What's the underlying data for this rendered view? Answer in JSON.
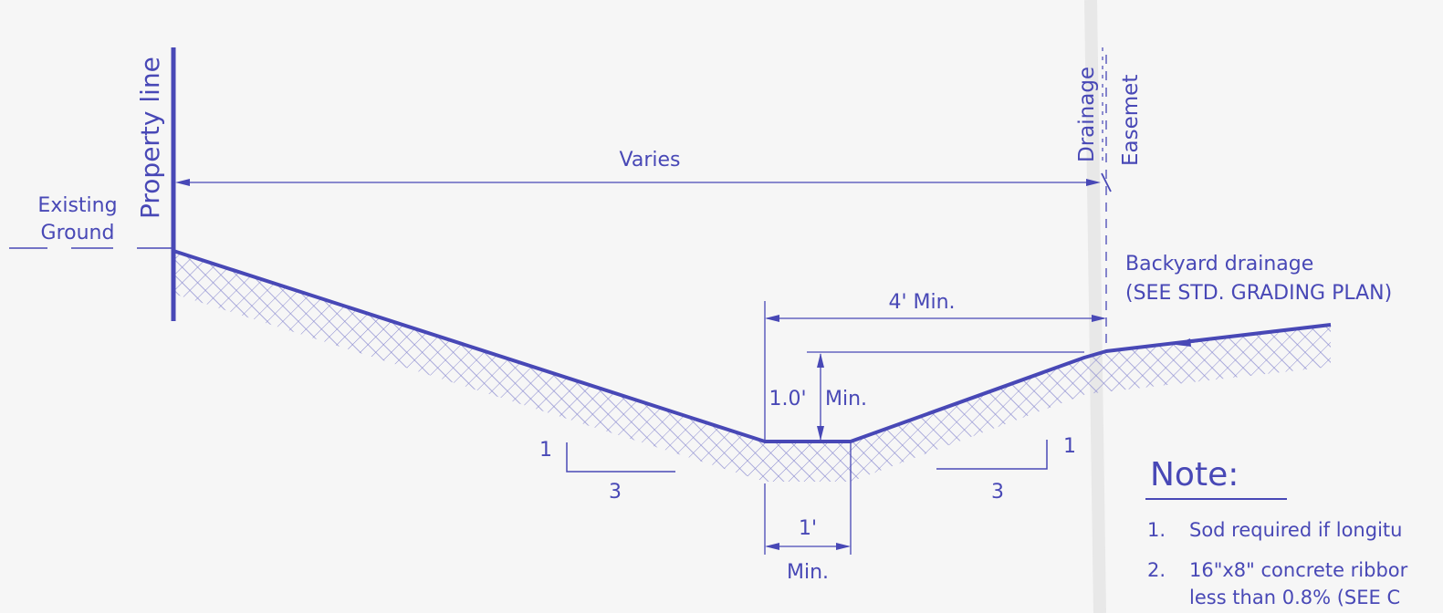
{
  "labels": {
    "property_line": "Property line",
    "existing_ground_1": "Existing",
    "existing_ground_2": "Ground",
    "varies": "Varies",
    "drainage": "Drainage",
    "easement": "Easemet",
    "backyard_1": "Backyard drainage",
    "backyard_2": "(SEE STD. GRADING PLAN)",
    "four_ft_min": "4' Min.",
    "depth_value": "1.0'",
    "depth_min": "Min.",
    "bottom_width": "1'",
    "bottom_min": "Min.",
    "slope_left_rise": "1",
    "slope_left_run": "3",
    "slope_right_rise": "1",
    "slope_right_run": "3"
  },
  "note": {
    "title": "Note:",
    "items": [
      {
        "num": "1.",
        "lines": [
          "Sod required if longitu"
        ]
      },
      {
        "num": "2.",
        "lines": [
          "16\"x8\" concrete ribbor",
          "less than 0.8% (SEE C"
        ]
      }
    ]
  },
  "colors": {
    "ink": "#4848b6",
    "paper": "#f6f6f6"
  }
}
